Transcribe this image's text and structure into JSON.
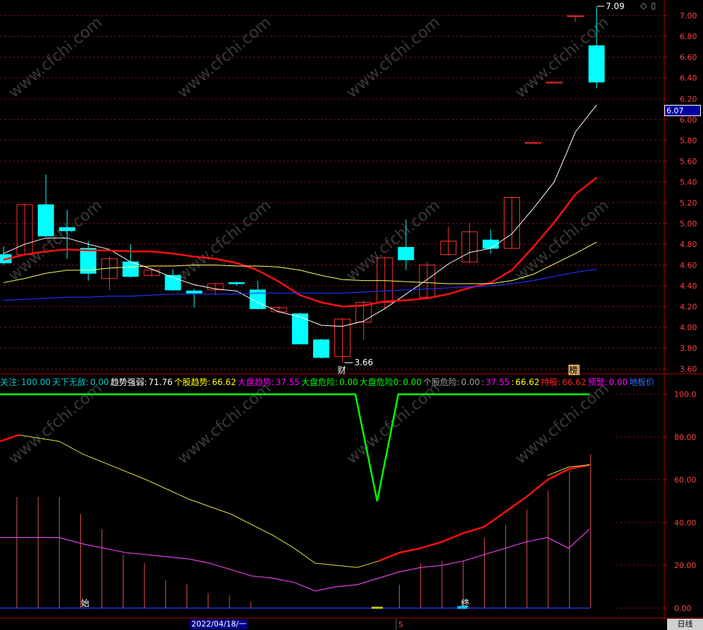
{
  "chart_data": {
    "type": "candlestick",
    "price_axis": {
      "ticks": [
        "7.00",
        "6.80",
        "6.60",
        "6.40",
        "6.20",
        "6.00",
        "5.80",
        "5.60",
        "5.40",
        "5.20",
        "5.00",
        "4.80",
        "4.60",
        "4.40",
        "4.20",
        "4.00",
        "3.80",
        "3.60"
      ],
      "range": [
        3.56,
        7.15
      ]
    },
    "candles": [
      {
        "o": 4.7,
        "c": 4.62,
        "h": 4.78,
        "l": 4.6
      },
      {
        "o": 4.7,
        "c": 5.18,
        "h": 5.19,
        "l": 4.69
      },
      {
        "o": 5.18,
        "c": 4.88,
        "h": 5.47,
        "l": 4.87
      },
      {
        "o": 4.96,
        "c": 4.93,
        "h": 5.13,
        "l": 4.66
      },
      {
        "o": 4.76,
        "c": 4.52,
        "h": 4.83,
        "l": 4.45
      },
      {
        "o": 4.47,
        "c": 4.66,
        "h": 4.68,
        "l": 4.36
      },
      {
        "o": 4.63,
        "c": 4.49,
        "h": 4.8,
        "l": 4.48
      },
      {
        "o": 4.5,
        "c": 4.55,
        "h": 4.57,
        "l": 4.49
      },
      {
        "o": 4.5,
        "c": 4.36,
        "h": 4.56,
        "l": 4.35
      },
      {
        "o": 4.35,
        "c": 4.33,
        "h": 4.37,
        "l": 4.19
      },
      {
        "o": 4.36,
        "c": 4.42,
        "h": 4.43,
        "l": 4.31
      },
      {
        "o": 4.43,
        "c": 4.42,
        "h": 4.44,
        "l": 4.4
      },
      {
        "o": 4.36,
        "c": 4.18,
        "h": 4.45,
        "l": 4.17
      },
      {
        "o": 4.15,
        "c": 4.19,
        "h": 4.2,
        "l": 4.14
      },
      {
        "o": 4.13,
        "c": 3.84,
        "h": 4.14,
        "l": 3.84
      },
      {
        "o": 3.88,
        "c": 3.71,
        "h": 3.89,
        "l": 3.7
      },
      {
        "o": 3.72,
        "c": 4.08,
        "h": 4.09,
        "l": 3.66
      },
      {
        "o": 4.05,
        "c": 4.24,
        "h": 4.26,
        "l": 3.88
      },
      {
        "o": 4.24,
        "c": 4.67,
        "h": 4.68,
        "l": 4.18
      },
      {
        "o": 4.77,
        "c": 4.65,
        "h": 5.04,
        "l": 4.55
      },
      {
        "o": 4.29,
        "c": 4.6,
        "h": 4.63,
        "l": 4.28
      },
      {
        "o": 4.7,
        "c": 4.83,
        "h": 4.97,
        "l": 4.69
      },
      {
        "o": 4.63,
        "c": 4.92,
        "h": 5.0,
        "l": 4.62
      },
      {
        "o": 4.84,
        "c": 4.76,
        "h": 4.94,
        "l": 4.71
      },
      {
        "o": 4.76,
        "c": 5.25,
        "h": 5.26,
        "l": 4.75
      },
      {
        "o": 5.78,
        "c": 5.78,
        "h": 5.78,
        "l": 5.78
      },
      {
        "o": 6.36,
        "c": 6.36,
        "h": 6.36,
        "l": 6.36
      },
      {
        "o": 7.0,
        "c": 7.0,
        "h": 7.0,
        "l": 6.94
      },
      {
        "o": 6.71,
        "c": 6.36,
        "h": 7.09,
        "l": 6.3
      }
    ],
    "ma_lines": {
      "white": [
        4.71,
        4.8,
        4.86,
        4.86,
        4.8,
        4.75,
        4.63,
        4.56,
        4.48,
        4.41,
        4.37,
        4.35,
        4.24,
        4.15,
        4.1,
        4.02,
        4.01,
        4.06,
        4.18,
        4.32,
        4.46,
        4.61,
        4.72,
        4.76,
        4.9,
        5.14,
        5.4,
        5.88,
        6.14
      ],
      "red": [
        4.65,
        4.7,
        4.73,
        4.75,
        4.74,
        4.74,
        4.73,
        4.73,
        4.71,
        4.68,
        4.66,
        4.62,
        4.55,
        4.44,
        4.31,
        4.24,
        4.2,
        4.21,
        4.25,
        4.26,
        4.28,
        4.32,
        4.38,
        4.43,
        4.55,
        4.77,
        5.01,
        5.28,
        5.44
      ],
      "yellow": [
        4.43,
        4.47,
        4.52,
        4.55,
        4.55,
        4.57,
        4.58,
        4.59,
        4.59,
        4.6,
        4.6,
        4.59,
        4.59,
        4.58,
        4.55,
        4.5,
        4.46,
        4.45,
        4.45,
        4.44,
        4.43,
        4.42,
        4.42,
        4.42,
        4.45,
        4.51,
        4.61,
        4.71,
        4.82
      ],
      "blue": [
        4.26,
        4.27,
        4.28,
        4.29,
        4.29,
        4.3,
        4.3,
        4.31,
        4.32,
        4.32,
        4.32,
        4.32,
        4.33,
        4.33,
        4.33,
        4.33,
        4.33,
        4.34,
        4.35,
        4.36,
        4.37,
        4.38,
        4.39,
        4.4,
        4.42,
        4.45,
        4.49,
        4.53,
        4.56
      ]
    },
    "annotations": {
      "high": "7.09",
      "low": "3.66",
      "cai_marker": "财",
      "bang_marker": "榜"
    },
    "indicator": {
      "axis_ticks": [
        "100.0",
        "80.00",
        "60.00",
        "40.00",
        "20.00",
        "0.00"
      ],
      "range": [
        -3,
        104
      ],
      "green": [
        100,
        100,
        100,
        100,
        100,
        100,
        100,
        100,
        100,
        100,
        100,
        100,
        100,
        100,
        100,
        100,
        100,
        100,
        50,
        100,
        100,
        100,
        100,
        100,
        100,
        100,
        100,
        100
      ],
      "yellow": [
        80,
        76,
        71,
        66,
        60,
        54,
        48,
        43,
        37,
        30,
        22,
        19,
        22,
        26,
        29,
        32,
        36,
        40,
        44,
        49,
        54,
        58,
        62,
        65,
        66
      ],
      "magenta": [
        33,
        33,
        33,
        30,
        28,
        26,
        24,
        21,
        18,
        15,
        12,
        9,
        11,
        13,
        17,
        19,
        21,
        25,
        28,
        31,
        33,
        28,
        37
      ],
      "red_segments": [
        [
          19,
          23
        ],
        [
          22,
          26
        ],
        [
          26,
          30
        ],
        [
          29,
          35
        ],
        [
          34,
          41
        ],
        [
          40,
          48
        ],
        [
          48,
          56
        ],
        [
          56,
          64
        ],
        [
          64,
          68
        ]
      ],
      "bars": [
        52,
        52,
        52,
        44,
        37,
        25,
        21,
        13,
        11,
        7,
        6,
        3,
        0,
        0,
        0,
        0,
        0,
        0,
        11,
        21,
        22,
        22,
        33,
        39,
        46,
        55,
        64,
        72
      ],
      "labels": {
        "start": "始",
        "end": "终"
      }
    }
  },
  "indicator_legend": [
    {
      "text": "关注:",
      "color": "#00c8c8"
    },
    {
      "text": "100.00",
      "color": "#00c8c8"
    },
    {
      "text": "天下无敌:",
      "color": "#00c8c8"
    },
    {
      "text": "0.00",
      "color": "#00c8c8"
    },
    {
      "text": "趋势强弱:",
      "color": "#ffffff"
    },
    {
      "text": "71.76",
      "color": "#ffffff"
    },
    {
      "text": "个股趋势:",
      "color": "#ffff00"
    },
    {
      "text": "66.62",
      "color": "#ffff00"
    },
    {
      "text": "大盘趋势:",
      "color": "#ff00ff"
    },
    {
      "text": "37.55",
      "color": "#ff00ff"
    },
    {
      "text": "大盘危险:",
      "color": "#00ff00"
    },
    {
      "text": "0.00",
      "color": "#00ff00"
    },
    {
      "text": "大盘危险0:",
      "color": "#00ff00"
    },
    {
      "text": "0.00",
      "color": "#00ff00"
    },
    {
      "text": "个股危险:",
      "color": "#a0a0a0"
    },
    {
      "text": "0.00",
      "color": "#a0a0a0"
    },
    {
      "text": ":",
      "color": "#a0a0a0"
    },
    {
      "text": "37.55",
      "color": "#ff00ff"
    },
    {
      "text": ":",
      "color": "#ffff00"
    },
    {
      "text": "66.62",
      "color": "#ffff00"
    },
    {
      "text": "持股:",
      "color": "#ff2020"
    },
    {
      "text": "66.62",
      "color": "#ff2020"
    },
    {
      "text": "预警:",
      "color": "#ff00ff"
    },
    {
      "text": "0.00",
      "color": "#ff00ff"
    },
    {
      "text": "地板价",
      "color": "#3070ff"
    }
  ],
  "current_price": "6.07",
  "date_label": "2022/04/18/一",
  "period_label": "日线",
  "cursor_marker": "5",
  "watermark": "www.cfchi.com",
  "colors": {
    "up": "#ff3030",
    "down": "#00ffff",
    "grid": "#7a1010",
    "axis": "#b00000",
    "axis_text": "#ff4040"
  }
}
